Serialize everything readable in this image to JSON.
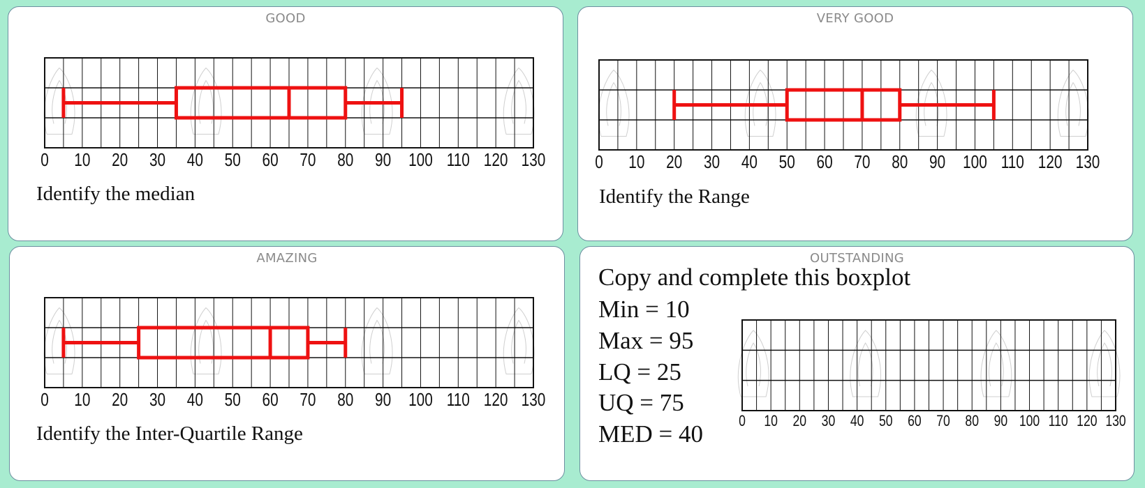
{
  "cards": [
    {
      "label": "GOOD",
      "question": "Identify the median"
    },
    {
      "label": "VERY GOOD",
      "question": "Identify the Range"
    },
    {
      "label": "AMAZING",
      "question": "Identify the Inter-Quartile Range"
    },
    {
      "label": "OUTSTANDING",
      "title": "Copy and complete this boxplot",
      "stats": [
        "Min = 10",
        "Max = 95",
        "LQ = 25",
        "UQ = 75",
        "MED = 40"
      ]
    }
  ],
  "colors": {
    "background": "#a8ecd0",
    "box": "#ee1111",
    "grid": "#111111"
  },
  "chart_data": [
    {
      "type": "boxplot",
      "xlim": [
        0,
        130
      ],
      "tick_labels": [
        "0",
        "10",
        "20",
        "30",
        "40",
        "50",
        "60",
        "70",
        "80",
        "90",
        "100",
        "110",
        "120",
        "130"
      ],
      "min": 5,
      "lq": 35,
      "median": 65,
      "uq": 80,
      "max": 95
    },
    {
      "type": "boxplot",
      "xlim": [
        0,
        130
      ],
      "tick_labels": [
        "0",
        "10",
        "20",
        "30",
        "40",
        "50",
        "60",
        "70",
        "80",
        "90",
        "100",
        "110",
        "120",
        "130"
      ],
      "min": 20,
      "lq": 50,
      "median": 70,
      "uq": 80,
      "max": 105
    },
    {
      "type": "boxplot",
      "xlim": [
        0,
        130
      ],
      "tick_labels": [
        "0",
        "10",
        "20",
        "30",
        "40",
        "50",
        "60",
        "70",
        "80",
        "90",
        "100",
        "110",
        "120",
        "130"
      ],
      "min": 5,
      "lq": 25,
      "median": 60,
      "uq": 70,
      "max": 80
    },
    {
      "type": "boxplot",
      "xlim": [
        0,
        130
      ],
      "tick_labels": [
        "0",
        "10",
        "20",
        "30",
        "40",
        "50",
        "60",
        "70",
        "80",
        "90",
        "100",
        "110",
        "120",
        "130"
      ]
    }
  ]
}
